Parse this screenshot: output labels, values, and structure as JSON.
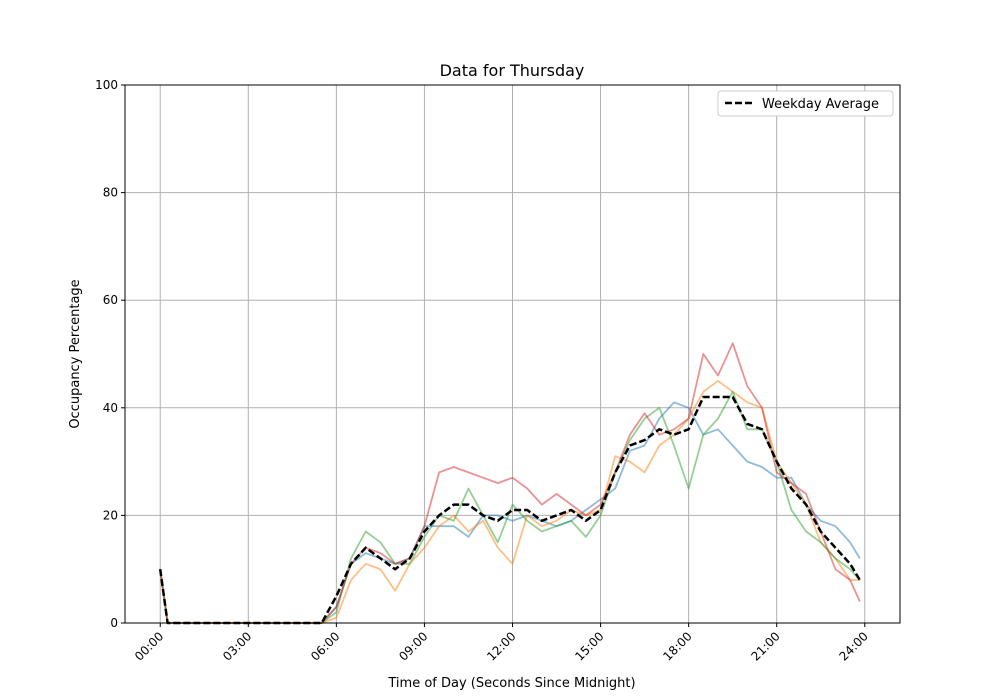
{
  "chart_data": {
    "type": "line",
    "title": "Data for Thursday",
    "xlabel": "Time of Day (Seconds Since Midnight)",
    "ylabel": "Occupancy Percentage",
    "xlim_hours": [
      -1.2,
      25.2
    ],
    "ylim": [
      0,
      100
    ],
    "grid": true,
    "legend_placement": "top-right",
    "x_ticks": [
      {
        "v": 0,
        "label": "00:00"
      },
      {
        "v": 3,
        "label": "03:00"
      },
      {
        "v": 6,
        "label": "06:00"
      },
      {
        "v": 9,
        "label": "09:00"
      },
      {
        "v": 12,
        "label": "12:00"
      },
      {
        "v": 15,
        "label": "15:00"
      },
      {
        "v": 18,
        "label": "18:00"
      },
      {
        "v": 21,
        "label": "21:00"
      },
      {
        "v": 24,
        "label": "24:00"
      }
    ],
    "y_ticks": [
      0,
      20,
      40,
      60,
      80,
      100
    ],
    "x_hours": [
      0,
      0.25,
      0.5,
      1,
      1.5,
      2,
      2.5,
      3,
      3.5,
      4,
      4.5,
      5,
      5.5,
      6,
      6.5,
      7,
      7.5,
      8,
      8.5,
      9,
      9.5,
      10,
      10.5,
      11,
      11.5,
      12,
      12.5,
      13,
      13.5,
      14,
      14.5,
      15,
      15.5,
      16,
      16.5,
      17,
      17.5,
      18,
      18.5,
      19,
      19.5,
      20,
      20.5,
      21,
      21.5,
      22,
      22.5,
      23,
      23.5,
      23.83
    ],
    "series": [
      {
        "color": "#1f77b4",
        "style": "solid",
        "values": [
          10,
          0,
          0,
          0,
          0,
          0,
          0,
          0,
          0,
          0,
          0,
          0,
          0,
          3,
          11,
          13,
          12,
          11,
          12,
          18,
          18,
          18,
          16,
          20,
          20,
          19,
          20,
          19,
          18,
          19,
          21,
          23,
          25,
          32,
          33,
          38,
          41,
          40,
          35,
          36,
          33,
          30,
          29,
          27,
          27,
          22,
          19,
          18,
          15,
          12
        ]
      },
      {
        "color": "#ff7f0e",
        "style": "solid",
        "values": [
          10,
          0,
          0,
          0,
          0,
          0,
          0,
          0,
          0,
          0,
          0,
          0,
          0,
          1,
          8,
          11,
          10,
          6,
          11,
          14,
          18,
          20,
          17,
          19,
          14,
          11,
          20,
          18,
          19,
          21,
          20,
          21,
          31,
          30,
          28,
          33,
          35,
          38,
          43,
          45,
          43,
          41,
          40,
          30,
          26,
          22,
          15,
          12,
          8,
          8
        ]
      },
      {
        "color": "#2ca02c",
        "style": "solid",
        "values": [
          10,
          0,
          0,
          0,
          0,
          0,
          0,
          0,
          0,
          0,
          0,
          0,
          0,
          2,
          12,
          17,
          15,
          11,
          11,
          16,
          20,
          19,
          25,
          20,
          15,
          22,
          19,
          17,
          18,
          19,
          16,
          20,
          28,
          34,
          38,
          40,
          33,
          25,
          35,
          38,
          43,
          36,
          36,
          30,
          21,
          17,
          15,
          12,
          10,
          8
        ]
      },
      {
        "color": "#d62728",
        "style": "solid",
        "values": [
          10,
          0,
          0,
          0,
          0,
          0,
          0,
          0,
          0,
          0,
          0,
          0,
          0,
          3,
          11,
          14,
          13,
          11,
          12,
          18,
          28,
          29,
          28,
          27,
          26,
          27,
          25,
          22,
          24,
          22,
          20,
          22,
          28,
          35,
          39,
          35,
          36,
          38,
          50,
          46,
          52,
          44,
          40,
          28,
          26,
          24,
          17,
          10,
          8,
          4
        ]
      },
      {
        "name": "Weekday Average",
        "color": "#000000",
        "style": "dashed",
        "values": [
          10,
          0,
          0,
          0,
          0,
          0,
          0,
          0,
          0,
          0,
          0,
          0,
          0,
          5,
          11,
          14,
          12,
          10,
          12,
          17,
          20,
          22,
          22,
          20,
          19,
          21,
          21,
          19,
          20,
          21,
          19,
          21,
          28,
          33,
          34,
          36,
          35,
          36,
          42,
          42,
          42,
          37,
          36,
          30,
          25,
          22,
          17,
          14,
          11,
          8
        ]
      }
    ]
  }
}
